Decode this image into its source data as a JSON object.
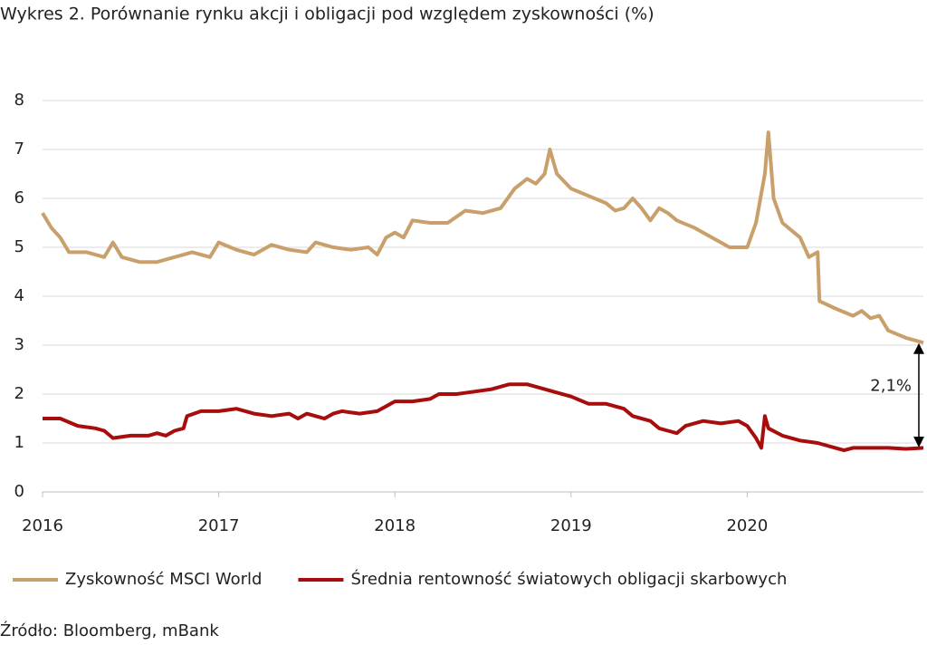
{
  "chart_data": {
    "type": "line",
    "title": "Wykres 2. Porównanie rynku akcji i obligacji pod względem zyskowności (%)",
    "xlim": [
      2016,
      2021
    ],
    "xticks": [
      2016,
      2017,
      2018,
      2019,
      2020
    ],
    "ylim": [
      0,
      8
    ],
    "yticks": [
      0,
      1,
      2,
      3,
      4,
      5,
      6,
      7,
      8
    ],
    "grid": true,
    "legend": "bottom",
    "annotation": "2,1%",
    "source": "Źródło: Bloomberg, mBank",
    "series": [
      {
        "name": "Zyskowność MSCI World",
        "color": "#c9a06b",
        "x": [
          2016.0,
          2016.05,
          2016.1,
          2016.15,
          2016.25,
          2016.35,
          2016.4,
          2016.45,
          2016.55,
          2016.65,
          2016.75,
          2016.85,
          2016.95,
          2017.0,
          2017.1,
          2017.2,
          2017.3,
          2017.4,
          2017.5,
          2017.55,
          2017.65,
          2017.75,
          2017.85,
          2017.9,
          2017.95,
          2018.0,
          2018.05,
          2018.1,
          2018.2,
          2018.3,
          2018.4,
          2018.5,
          2018.6,
          2018.68,
          2018.75,
          2018.8,
          2018.85,
          2018.88,
          2018.92,
          2019.0,
          2019.1,
          2019.2,
          2019.25,
          2019.3,
          2019.35,
          2019.4,
          2019.45,
          2019.5,
          2019.55,
          2019.6,
          2019.7,
          2019.8,
          2019.9,
          2020.0,
          2020.05,
          2020.1,
          2020.12,
          2020.15,
          2020.2,
          2020.3,
          2020.35,
          2020.4,
          2020.41,
          2020.5,
          2020.6,
          2020.65,
          2020.7,
          2020.75,
          2020.8,
          2020.9,
          2021.0
        ],
        "values": [
          5.7,
          5.4,
          5.2,
          4.9,
          4.9,
          4.8,
          5.1,
          4.8,
          4.7,
          4.7,
          4.8,
          4.9,
          4.8,
          5.1,
          4.95,
          4.85,
          5.05,
          4.95,
          4.9,
          5.1,
          5.0,
          4.95,
          5.0,
          4.85,
          5.2,
          5.3,
          5.2,
          5.55,
          5.5,
          5.5,
          5.75,
          5.7,
          5.8,
          6.2,
          6.4,
          6.3,
          6.5,
          7.0,
          6.5,
          6.2,
          6.05,
          5.9,
          5.75,
          5.8,
          6.0,
          5.8,
          5.55,
          5.8,
          5.7,
          5.55,
          5.4,
          5.2,
          5.0,
          5.0,
          5.5,
          6.5,
          7.35,
          6.0,
          5.5,
          5.2,
          4.8,
          4.9,
          3.9,
          3.75,
          3.6,
          3.7,
          3.55,
          3.6,
          3.3,
          3.15,
          3.05
        ]
      },
      {
        "name": "Średnia rentowność światowych obligacji skarbowych",
        "color": "#a80d0d",
        "x": [
          2016.0,
          2016.1,
          2016.2,
          2016.3,
          2016.35,
          2016.4,
          2016.5,
          2016.6,
          2016.65,
          2016.7,
          2016.75,
          2016.8,
          2016.82,
          2016.9,
          2017.0,
          2017.1,
          2017.2,
          2017.3,
          2017.4,
          2017.45,
          2017.5,
          2017.55,
          2017.6,
          2017.65,
          2017.7,
          2017.8,
          2017.9,
          2018.0,
          2018.1,
          2018.2,
          2018.25,
          2018.35,
          2018.45,
          2018.55,
          2018.65,
          2018.75,
          2018.85,
          2018.9,
          2019.0,
          2019.1,
          2019.2,
          2019.3,
          2019.35,
          2019.45,
          2019.5,
          2019.55,
          2019.6,
          2019.65,
          2019.75,
          2019.85,
          2019.95,
          2020.0,
          2020.05,
          2020.08,
          2020.1,
          2020.12,
          2020.2,
          2020.3,
          2020.4,
          2020.5,
          2020.55,
          2020.6,
          2020.7,
          2020.8,
          2020.9,
          2021.0
        ],
        "values": [
          1.5,
          1.5,
          1.35,
          1.3,
          1.25,
          1.1,
          1.15,
          1.15,
          1.2,
          1.15,
          1.25,
          1.3,
          1.55,
          1.65,
          1.65,
          1.7,
          1.6,
          1.55,
          1.6,
          1.5,
          1.6,
          1.55,
          1.5,
          1.6,
          1.65,
          1.6,
          1.65,
          1.85,
          1.85,
          1.9,
          2.0,
          2.0,
          2.05,
          2.1,
          2.2,
          2.2,
          2.1,
          2.05,
          1.95,
          1.8,
          1.8,
          1.7,
          1.55,
          1.45,
          1.3,
          1.25,
          1.2,
          1.35,
          1.45,
          1.4,
          1.45,
          1.35,
          1.1,
          0.9,
          1.55,
          1.3,
          1.15,
          1.05,
          1.0,
          0.9,
          0.85,
          0.9,
          0.9,
          0.9,
          0.88,
          0.9
        ]
      }
    ]
  }
}
